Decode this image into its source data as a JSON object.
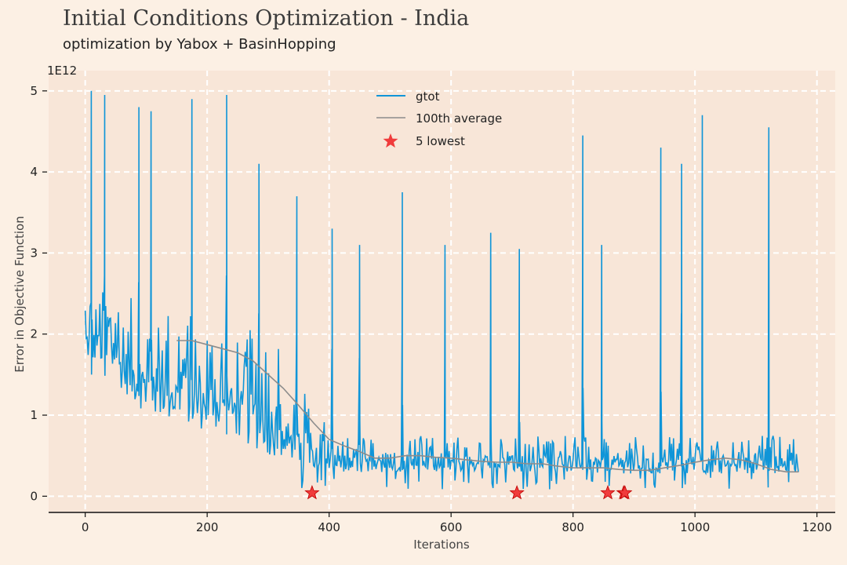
{
  "title": "Initial Conditions Optimization - India",
  "subtitle": "optimization by Yabox + BasinHopping",
  "chart_data": {
    "type": "line",
    "xlabel": "Iterations",
    "ylabel": "Error in Objective Function",
    "y_multiplier": "1E12",
    "xlim": [
      -60,
      1230
    ],
    "ylim": [
      -0.2,
      5.25
    ],
    "xticks": [
      0,
      200,
      400,
      600,
      800,
      1000,
      1200
    ],
    "yticks": [
      0,
      1,
      2,
      3,
      4,
      5
    ],
    "grid": true,
    "legend_position": "top-center",
    "series": [
      {
        "name": "gtot",
        "color": "#0f95d8",
        "envelope_x": [
          0,
          50,
          100,
          150,
          200,
          250,
          300,
          350,
          400,
          450,
          500,
          550,
          600,
          650,
          700,
          750,
          800,
          850,
          900,
          950,
          1000,
          1050,
          1100,
          1170
        ],
        "envelope_base": [
          1.7,
          1.4,
          1.0,
          0.9,
          0.8,
          0.7,
          0.5,
          0.4,
          0.32,
          0.28,
          0.3,
          0.3,
          0.3,
          0.3,
          0.3,
          0.3,
          0.3,
          0.28,
          0.28,
          0.28,
          0.28,
          0.28,
          0.28,
          0.28
        ],
        "peaks": [
          {
            "x": 10,
            "y": 5.0
          },
          {
            "x": 32,
            "y": 4.95
          },
          {
            "x": 88,
            "y": 4.8
          },
          {
            "x": 108,
            "y": 4.75
          },
          {
            "x": 175,
            "y": 4.9
          },
          {
            "x": 232,
            "y": 4.95
          },
          {
            "x": 285,
            "y": 4.1
          },
          {
            "x": 347,
            "y": 3.7
          },
          {
            "x": 405,
            "y": 3.3
          },
          {
            "x": 450,
            "y": 3.1
          },
          {
            "x": 520,
            "y": 3.75
          },
          {
            "x": 590,
            "y": 3.1
          },
          {
            "x": 665,
            "y": 3.25
          },
          {
            "x": 712,
            "y": 3.05
          },
          {
            "x": 816,
            "y": 4.45
          },
          {
            "x": 847,
            "y": 3.1
          },
          {
            "x": 944,
            "y": 4.3
          },
          {
            "x": 978,
            "y": 4.1
          },
          {
            "x": 1012,
            "y": 4.7
          },
          {
            "x": 1121,
            "y": 4.55
          }
        ]
      },
      {
        "name": "100th average",
        "color": "#8c8c8c",
        "x": [
          150,
          175,
          200,
          225,
          250,
          275,
          300,
          325,
          350,
          375,
          400,
          425,
          450,
          475,
          500,
          525,
          550,
          575,
          600,
          625,
          650,
          675,
          700,
          725,
          750,
          775,
          800,
          825,
          850,
          875,
          900,
          925,
          950,
          975,
          1000,
          1025,
          1050,
          1075,
          1100,
          1125,
          1150,
          1170
        ],
        "y": [
          1.92,
          1.92,
          1.87,
          1.82,
          1.77,
          1.67,
          1.5,
          1.33,
          1.12,
          0.9,
          0.7,
          0.62,
          0.55,
          0.47,
          0.47,
          0.5,
          0.5,
          0.48,
          0.47,
          0.45,
          0.43,
          0.42,
          0.42,
          0.4,
          0.4,
          0.37,
          0.35,
          0.35,
          0.35,
          0.33,
          0.32,
          0.32,
          0.35,
          0.38,
          0.42,
          0.45,
          0.47,
          0.45,
          0.4,
          0.33,
          0.3,
          0.3
        ]
      },
      {
        "name": "5 lowest",
        "color": "#f03c3c",
        "marker": "star",
        "x": [
          372,
          708,
          857,
          883,
          885
        ],
        "y": [
          0.04,
          0.04,
          0.04,
          0.04,
          0.04
        ]
      }
    ]
  }
}
